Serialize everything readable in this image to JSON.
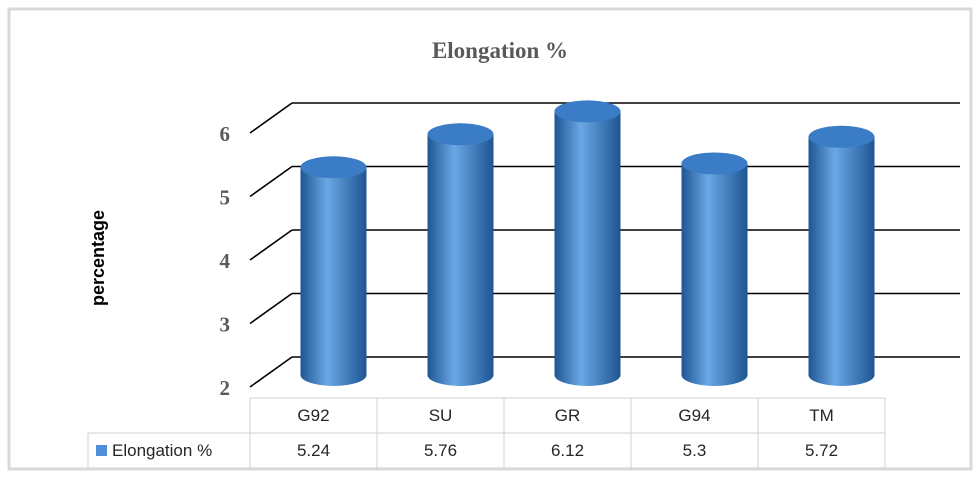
{
  "chart_data": {
    "type": "bar",
    "title": "Elongation %",
    "xlabel": "",
    "ylabel": "percentage",
    "ylim": [
      2,
      6
    ],
    "yticks": [
      "2",
      "3",
      "4",
      "5",
      "6"
    ],
    "categories": [
      "G92",
      "SU",
      "GR",
      "G94",
      "TM"
    ],
    "series": [
      {
        "name": "Elongation %",
        "values": [
          5.24,
          5.76,
          6.12,
          5.3,
          5.72
        ]
      }
    ],
    "value_labels": [
      "5.24",
      "5.76",
      "6.12",
      "5.3",
      "5.72"
    ],
    "bar_style": "3d-cylinder",
    "data_table": true,
    "grid": true,
    "colors": {
      "bar": "#3a7cc6",
      "bar_light": "#6aa8e6",
      "bar_dark": "#1e5592",
      "grid": "#000000",
      "frame": "#d9d9d9",
      "legend_key": "#4f8fd8"
    }
  }
}
